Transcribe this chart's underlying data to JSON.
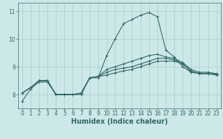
{
  "xlabel": "Humidex (Indice chaleur)",
  "ylabel": "",
  "background_color": "#cce8e8",
  "grid_color": "#aacccc",
  "line_color": "#336666",
  "xlim": [
    -0.5,
    23.5
  ],
  "ylim": [
    7.5,
    11.3
  ],
  "yticks": [
    8,
    9,
    10,
    11
  ],
  "xticks": [
    0,
    1,
    2,
    3,
    4,
    5,
    6,
    7,
    8,
    9,
    10,
    11,
    12,
    13,
    14,
    15,
    16,
    17,
    18,
    19,
    20,
    21,
    22,
    23
  ],
  "lines": [
    {
      "x": [
        0,
        1,
        2,
        3,
        4,
        5,
        6,
        7,
        8,
        9,
        10,
        11,
        12,
        13,
        14,
        15,
        16,
        17,
        18,
        19,
        20,
        21,
        22,
        23
      ],
      "y": [
        7.75,
        8.2,
        8.45,
        8.45,
        8.0,
        8.0,
        8.0,
        8.0,
        8.6,
        8.6,
        9.4,
        10.0,
        10.55,
        10.7,
        10.85,
        10.95,
        10.8,
        9.6,
        9.35,
        9.0,
        8.8,
        8.75,
        8.75,
        8.75
      ]
    },
    {
      "x": [
        0,
        1,
        2,
        3,
        4,
        5,
        6,
        7,
        8,
        9,
        10,
        11,
        12,
        13,
        14,
        15,
        16,
        17,
        18,
        19,
        20,
        21,
        22,
        23
      ],
      "y": [
        8.05,
        8.25,
        8.5,
        8.5,
        8.0,
        8.0,
        8.0,
        8.05,
        8.6,
        8.65,
        8.9,
        9.0,
        9.1,
        9.2,
        9.3,
        9.4,
        9.45,
        9.35,
        9.3,
        9.15,
        8.9,
        8.8,
        8.8,
        8.75
      ]
    },
    {
      "x": [
        0,
        1,
        2,
        3,
        4,
        5,
        6,
        7,
        8,
        9,
        10,
        11,
        12,
        13,
        14,
        15,
        16,
        17,
        18,
        19,
        20,
        21,
        22,
        23
      ],
      "y": [
        8.05,
        8.25,
        8.5,
        8.5,
        8.0,
        8.0,
        8.0,
        8.05,
        8.6,
        8.65,
        8.8,
        8.9,
        8.95,
        9.0,
        9.1,
        9.2,
        9.3,
        9.3,
        9.25,
        9.1,
        8.85,
        8.75,
        8.75,
        8.72
      ]
    },
    {
      "x": [
        0,
        1,
        2,
        3,
        4,
        5,
        6,
        7,
        8,
        9,
        10,
        11,
        12,
        13,
        14,
        15,
        16,
        17,
        18,
        19,
        20,
        21,
        22,
        23
      ],
      "y": [
        8.05,
        8.25,
        8.5,
        8.5,
        8.0,
        8.0,
        8.0,
        8.05,
        8.6,
        8.65,
        8.7,
        8.78,
        8.85,
        8.9,
        9.0,
        9.1,
        9.2,
        9.2,
        9.2,
        9.1,
        8.82,
        8.75,
        8.75,
        8.7
      ]
    }
  ],
  "marker": "+",
  "markersize": 3,
  "linewidth": 0.8,
  "xlabel_fontsize": 7,
  "tick_fontsize": 5.5
}
